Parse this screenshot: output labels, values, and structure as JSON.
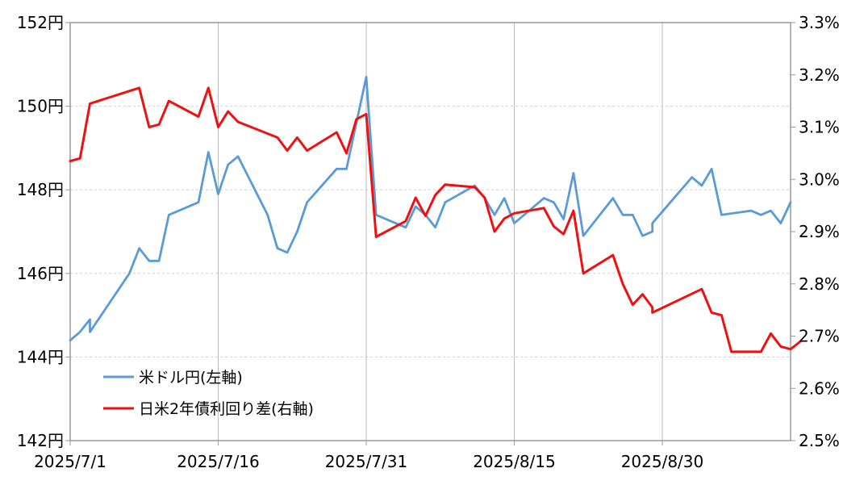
{
  "chart_data": {
    "type": "line",
    "title": "",
    "xlabel": "",
    "ylabel": "",
    "y_left_range": [
      142,
      152
    ],
    "y_left_ticks": [
      "142円",
      "144円",
      "146円",
      "148円",
      "150円",
      "152円"
    ],
    "y_right_range": [
      2.5,
      3.3
    ],
    "y_right_ticks": [
      "2.5%",
      "2.6%",
      "2.7%",
      "2.8%",
      "2.9%",
      "3.0%",
      "3.1%",
      "3.2%",
      "3.3%"
    ],
    "x_ticks": [
      "2025/7/1",
      "2025/7/16",
      "2025/7/31",
      "2025/8/15",
      "2025/8/30"
    ],
    "grid": true,
    "legend_position": "bottom-left",
    "series": [
      {
        "name": "米ドル円(左軸)",
        "axis": "left",
        "color": "#5b9bd5",
        "points": [
          [
            "2025/7/1",
            144.4
          ],
          [
            "2025/7/2",
            144.6
          ],
          [
            "2025/7/3",
            144.9
          ],
          [
            "2025/7/3",
            144.6
          ],
          [
            "2025/7/7",
            146.0
          ],
          [
            "2025/7/8",
            146.6
          ],
          [
            "2025/7/9",
            146.3
          ],
          [
            "2025/7/10",
            146.3
          ],
          [
            "2025/7/11",
            147.4
          ],
          [
            "2025/7/14",
            147.7
          ],
          [
            "2025/7/15",
            148.9
          ],
          [
            "2025/7/16",
            147.9
          ],
          [
            "2025/7/17",
            148.6
          ],
          [
            "2025/7/18",
            148.8
          ],
          [
            "2025/7/21",
            147.4
          ],
          [
            "2025/7/22",
            146.6
          ],
          [
            "2025/7/23",
            146.5
          ],
          [
            "2025/7/24",
            147.0
          ],
          [
            "2025/7/25",
            147.7
          ],
          [
            "2025/7/28",
            148.5
          ],
          [
            "2025/7/29",
            148.5
          ],
          [
            "2025/7/30",
            149.6
          ],
          [
            "2025/7/31",
            150.7
          ],
          [
            "2025/8/1",
            147.4
          ],
          [
            "2025/8/4",
            147.1
          ],
          [
            "2025/8/5",
            147.6
          ],
          [
            "2025/8/6",
            147.4
          ],
          [
            "2025/8/7",
            147.1
          ],
          [
            "2025/8/8",
            147.7
          ],
          [
            "2025/8/11",
            148.1
          ],
          [
            "2025/8/12",
            147.8
          ],
          [
            "2025/8/13",
            147.4
          ],
          [
            "2025/8/14",
            147.8
          ],
          [
            "2025/8/15",
            147.2
          ],
          [
            "2025/8/18",
            147.8
          ],
          [
            "2025/8/19",
            147.7
          ],
          [
            "2025/8/20",
            147.3
          ],
          [
            "2025/8/21",
            148.4
          ],
          [
            "2025/8/22",
            146.9
          ],
          [
            "2025/8/25",
            147.8
          ],
          [
            "2025/8/26",
            147.4
          ],
          [
            "2025/8/27",
            147.4
          ],
          [
            "2025/8/28",
            146.9
          ],
          [
            "2025/8/29",
            147.0
          ],
          [
            "2025/8/29",
            147.2
          ],
          [
            "2025/9/2",
            148.3
          ],
          [
            "2025/9/3",
            148.1
          ],
          [
            "2025/9/4",
            148.5
          ],
          [
            "2025/9/5",
            147.4
          ],
          [
            "2025/9/8",
            147.5
          ],
          [
            "2025/9/9",
            147.4
          ],
          [
            "2025/9/10",
            147.5
          ],
          [
            "2025/9/11",
            147.2
          ],
          [
            "2025/9/12",
            147.7
          ]
        ]
      },
      {
        "name": "日米2年債利回り差(右軸)",
        "axis": "right",
        "color": "#ee1111",
        "points": [
          [
            "2025/7/1",
            3.035
          ],
          [
            "2025/7/2",
            3.04
          ],
          [
            "2025/7/3",
            3.145
          ],
          [
            "2025/7/8",
            3.175
          ],
          [
            "2025/7/9",
            3.1
          ],
          [
            "2025/7/10",
            3.105
          ],
          [
            "2025/7/11",
            3.15
          ],
          [
            "2025/7/14",
            3.12
          ],
          [
            "2025/7/15",
            3.175
          ],
          [
            "2025/7/16",
            3.1
          ],
          [
            "2025/7/17",
            3.13
          ],
          [
            "2025/7/18",
            3.11
          ],
          [
            "2025/7/22",
            3.08
          ],
          [
            "2025/7/23",
            3.055
          ],
          [
            "2025/7/24",
            3.08
          ],
          [
            "2025/7/25",
            3.055
          ],
          [
            "2025/7/28",
            3.09
          ],
          [
            "2025/7/29",
            3.05
          ],
          [
            "2025/7/30",
            3.115
          ],
          [
            "2025/7/31",
            3.125
          ],
          [
            "2025/8/1",
            2.89
          ],
          [
            "2025/8/4",
            2.92
          ],
          [
            "2025/8/5",
            2.965
          ],
          [
            "2025/8/6",
            2.93
          ],
          [
            "2025/8/7",
            2.97
          ],
          [
            "2025/8/8",
            2.99
          ],
          [
            "2025/8/11",
            2.985
          ],
          [
            "2025/8/12",
            2.965
          ],
          [
            "2025/8/13",
            2.9
          ],
          [
            "2025/8/14",
            2.925
          ],
          [
            "2025/8/15",
            2.935
          ],
          [
            "2025/8/18",
            2.945
          ],
          [
            "2025/8/19",
            2.91
          ],
          [
            "2025/8/20",
            2.895
          ],
          [
            "2025/8/21",
            2.94
          ],
          [
            "2025/8/22",
            2.82
          ],
          [
            "2025/8/25",
            2.855
          ],
          [
            "2025/8/26",
            2.8
          ],
          [
            "2025/8/27",
            2.76
          ],
          [
            "2025/8/28",
            2.78
          ],
          [
            "2025/8/29",
            2.755
          ],
          [
            "2025/8/29",
            2.745
          ],
          [
            "2025/9/3",
            2.79
          ],
          [
            "2025/9/4",
            2.745
          ],
          [
            "2025/9/5",
            2.74
          ],
          [
            "2025/9/6",
            2.67
          ],
          [
            "2025/9/9",
            2.67
          ],
          [
            "2025/9/10",
            2.705
          ],
          [
            "2025/9/11",
            2.68
          ],
          [
            "2025/9/12",
            2.675
          ],
          [
            "2025/9/13",
            2.69
          ]
        ]
      }
    ]
  }
}
